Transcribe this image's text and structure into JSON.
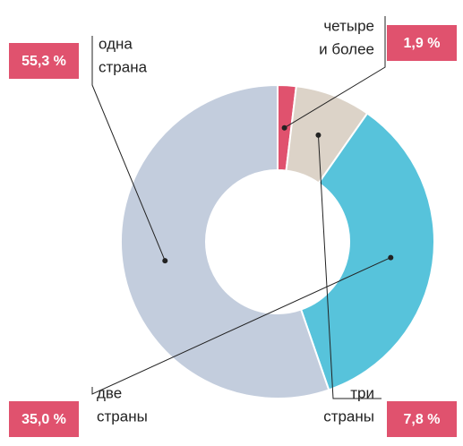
{
  "chart_data": {
    "type": "donut",
    "categories": [
      [
        "четыре",
        "и более"
      ],
      [
        "три",
        "страны"
      ],
      [
        "две",
        "страны"
      ],
      [
        "одна",
        "страна"
      ]
    ],
    "values": [
      1.9,
      7.8,
      35.0,
      55.3
    ],
    "value_labels": [
      "1,9 %",
      "7,8 %",
      "35,0 %",
      "55,3 %"
    ],
    "colors": [
      "#e0526e",
      "#dcd3c8",
      "#57c3db",
      "#c3cddd"
    ],
    "badge_color": "#e0526e"
  }
}
